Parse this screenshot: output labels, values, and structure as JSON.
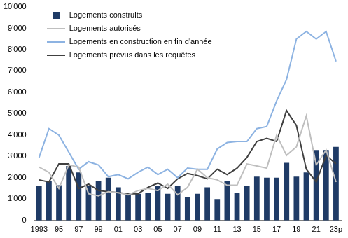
{
  "chart_data": {
    "type": "bar",
    "categories": [
      "1993",
      null,
      "95",
      null,
      "97",
      null,
      "99",
      null,
      "01",
      null,
      "03",
      null,
      "05",
      null,
      "07",
      null,
      "09",
      null,
      "11",
      null,
      "13",
      null,
      "15",
      null,
      "17",
      null,
      "19",
      null,
      "21",
      null,
      "23p"
    ],
    "series": [
      {
        "name": "Logements construits",
        "type": "bar",
        "color": "#1f3b66",
        "values": [
          1600,
          1850,
          1650,
          2550,
          2250,
          1600,
          1850,
          2000,
          1550,
          1300,
          1250,
          1300,
          1600,
          1250,
          1600,
          1100,
          1250,
          1550,
          1000,
          1850,
          1300,
          1600,
          2050,
          2000,
          2000,
          2700,
          2050,
          2250,
          3300,
          3300,
          3450
        ]
      },
      {
        "name": "Logements autorisés",
        "type": "line",
        "color": "#bfbfbf",
        "values": [
          2500,
          2250,
          1500,
          2600,
          2500,
          1250,
          1150,
          1350,
          1300,
          1200,
          1400,
          1500,
          1400,
          1700,
          1200,
          1550,
          2400,
          2000,
          1900,
          1650,
          1650,
          2650,
          2550,
          2450,
          4000,
          3050,
          3450,
          4900,
          2600,
          3300,
          1800
        ]
      },
      {
        "name": "Logements en construction en fin d'année",
        "type": "line",
        "color": "#8db3e2",
        "values": [
          2950,
          4300,
          4000,
          3200,
          2400,
          2750,
          2600,
          2050,
          2150,
          1950,
          2250,
          2500,
          2150,
          2400,
          2000,
          2450,
          2400,
          2400,
          3350,
          3650,
          3700,
          3700,
          4300,
          4400,
          5600,
          6600,
          8500,
          8850,
          8500,
          8850,
          7450
        ]
      },
      {
        "name": "Logements prévus dans les requêtes",
        "type": "line",
        "color": "#404040",
        "values": [
          1900,
          1800,
          2650,
          2650,
          1500,
          1700,
          1400,
          1350,
          1300,
          1250,
          1250,
          1550,
          1750,
          1500,
          1950,
          2200,
          2100,
          1950,
          2400,
          2150,
          2450,
          2950,
          3700,
          3850,
          3700,
          5150,
          4450,
          2400,
          1800,
          3050,
          2650
        ]
      }
    ],
    "ylim": [
      0,
      10000
    ],
    "yticks": [
      0,
      {
        "value": 1000,
        "label": "1'000"
      },
      {
        "value": 2000,
        "label": "2'000"
      },
      {
        "value": 3000,
        "label": "3'000"
      },
      {
        "value": 4000,
        "label": "4'000"
      },
      {
        "value": 5000,
        "label": "5'000"
      },
      {
        "value": 6000,
        "label": "6'000"
      },
      {
        "value": 7000,
        "label": "7'000"
      },
      {
        "value": 8000,
        "label": "8'000"
      },
      {
        "value": 9000,
        "label": "9'000"
      },
      {
        "value": 10000,
        "label": "10'000"
      }
    ],
    "grid": false,
    "legend": "upper left"
  }
}
